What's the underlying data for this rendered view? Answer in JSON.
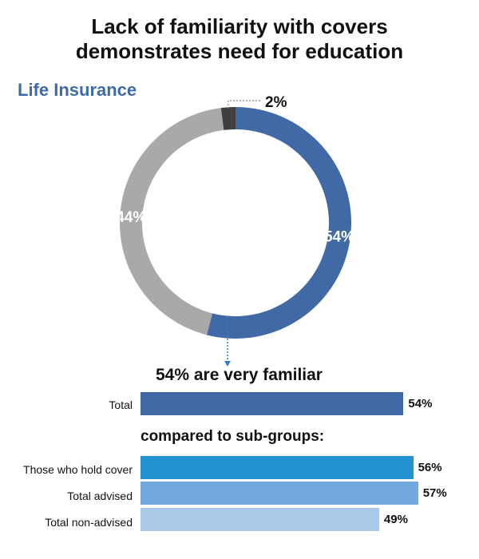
{
  "title_line1": "Lack of familiarity with covers",
  "title_line2": "demonstrates need for education",
  "subtitle": "Life Insurance",
  "headline": "54% are very familiar",
  "subhead": "compared to sub-groups:",
  "colors": {
    "donut_blue": "#4169a6",
    "donut_grey": "#a8a9aa",
    "donut_dark": "#3e3f40",
    "subtitle_blue": "#3f6aa9",
    "bar_total": "#4169a6",
    "bar_hold_cover": "#2291d0",
    "bar_advised": "#72a9dd",
    "bar_non_advised": "#a9c9e9"
  },
  "chart_data": [
    {
      "type": "pie",
      "title": "Life Insurance",
      "slices": [
        {
          "label": "54%",
          "value": 54
        },
        {
          "label": "44%",
          "value": 44
        },
        {
          "label": "2%",
          "value": 2
        }
      ]
    },
    {
      "type": "bar",
      "orientation": "horizontal",
      "categories": [
        "Total",
        "Those who hold cover",
        "Total advised",
        "Total non-advised"
      ],
      "values": [
        54,
        56,
        57,
        49
      ],
      "value_labels": [
        "54%",
        "56%",
        "57%",
        "49%"
      ]
    }
  ]
}
